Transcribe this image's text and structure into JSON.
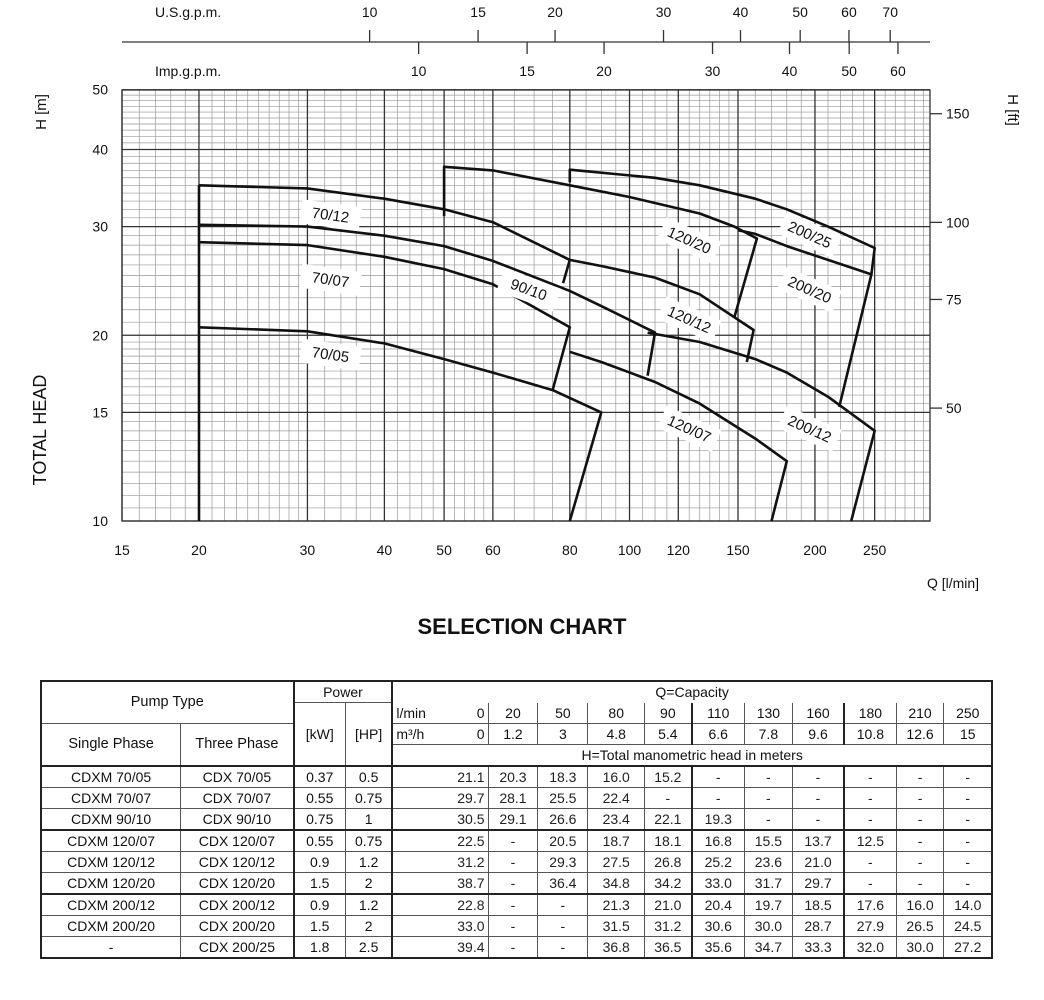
{
  "chart_data": {
    "type": "line",
    "title": "SELECTION CHART",
    "xlabel": "Q [l/min]",
    "ylabel": "TOTAL HEAD",
    "ylabel_unit_left": "H [m]",
    "ylabel_unit_right": "H [ft]",
    "x_scale": "log",
    "y_scale": "log",
    "xlim": [
      15,
      307
    ],
    "ylim": [
      10,
      50
    ],
    "grid": true,
    "x_ticks": [
      15,
      20,
      30,
      40,
      50,
      60,
      80,
      100,
      120,
      150,
      200,
      250
    ],
    "y_ticks": [
      10,
      15,
      20,
      30,
      40,
      50
    ],
    "y_ticks_right_ft": [
      50,
      75,
      100,
      150
    ],
    "top_axis_us": {
      "label": "U.S.g.p.m.",
      "ticks": [
        10,
        15,
        20,
        30,
        40,
        50,
        60,
        70
      ]
    },
    "top_axis_imp": {
      "label": "Imp.g.p.m.",
      "ticks": [
        10,
        15,
        20,
        30,
        40,
        50,
        60
      ]
    },
    "line_color": "#111111",
    "series": [
      {
        "name": "",
        "points": [
          [
            20,
            10
          ],
          [
            20,
            35
          ]
        ]
      },
      {
        "name": "70/12",
        "points": [
          [
            20,
            35
          ],
          [
            30,
            34.6
          ],
          [
            40,
            33.3
          ],
          [
            50,
            32
          ],
          [
            60,
            30.5
          ],
          [
            80,
            26.5
          ],
          [
            78,
            24.3
          ]
        ]
      },
      {
        "name": "90/10",
        "points": [
          [
            20,
            30.2
          ],
          [
            30,
            30
          ],
          [
            40,
            29
          ],
          [
            50,
            27.9
          ],
          [
            60,
            26.4
          ],
          [
            80,
            23.6
          ],
          [
            90,
            22.3
          ],
          [
            110,
            20.2
          ],
          [
            107,
            17.2
          ]
        ]
      },
      {
        "name": "70/07",
        "points": [
          [
            20,
            28.3
          ],
          [
            30,
            28
          ],
          [
            40,
            26.8
          ],
          [
            50,
            25.6
          ],
          [
            60,
            24.2
          ],
          [
            80,
            20.6
          ],
          [
            75,
            16.3
          ]
        ]
      },
      {
        "name": "70/05",
        "points": [
          [
            20,
            20.6
          ],
          [
            30,
            20.3
          ],
          [
            40,
            19.4
          ],
          [
            50,
            18.3
          ],
          [
            60,
            17.4
          ],
          [
            75,
            16.3
          ],
          [
            90,
            15.0
          ],
          [
            80,
            10
          ]
        ]
      },
      {
        "name": "120/20",
        "points": [
          [
            50,
            31.2
          ],
          [
            50,
            37.5
          ],
          [
            60,
            37
          ],
          [
            80,
            35
          ],
          [
            100,
            33.5
          ],
          [
            130,
            31.5
          ],
          [
            148,
            30
          ],
          [
            161,
            28.7
          ],
          [
            148,
            21.4
          ]
        ]
      },
      {
        "name": "120/12",
        "points": [
          [
            80,
            26.5
          ],
          [
            90,
            25.9
          ],
          [
            110,
            24.8
          ],
          [
            130,
            23.3
          ],
          [
            159,
            20.4
          ],
          [
            155,
            18.1
          ]
        ]
      },
      {
        "name": "120/07",
        "points": [
          [
            80,
            18.8
          ],
          [
            90,
            18.1
          ],
          [
            110,
            16.8
          ],
          [
            130,
            15.5
          ],
          [
            160,
            13.6
          ],
          [
            180,
            12.5
          ],
          [
            170,
            10
          ]
        ]
      },
      {
        "name": "200/25",
        "points": [
          [
            80,
            35.4
          ],
          [
            80,
            37.1
          ],
          [
            110,
            36
          ],
          [
            130,
            35
          ],
          [
            160,
            33.3
          ],
          [
            180,
            32
          ],
          [
            210,
            30
          ],
          [
            250,
            27.7
          ],
          [
            247,
            25.1
          ]
        ]
      },
      {
        "name": "200/20",
        "points": [
          [
            150,
            29.6
          ],
          [
            160,
            29.2
          ],
          [
            180,
            27.9
          ],
          [
            210,
            26.5
          ],
          [
            247,
            25.1
          ],
          [
            219,
            15.3
          ]
        ]
      },
      {
        "name": "200/12",
        "points": [
          [
            107,
            20.2
          ],
          [
            130,
            19.5
          ],
          [
            160,
            18.3
          ],
          [
            180,
            17.4
          ],
          [
            210,
            15.9
          ],
          [
            250,
            14
          ],
          [
            229,
            10
          ]
        ]
      }
    ]
  },
  "table": {
    "pump_type": "Pump Type",
    "single_phase": "Single Phase",
    "three_phase": "Three Phase",
    "power": "Power",
    "kw": "[kW]",
    "hp": "[HP]",
    "capacity": "Q=Capacity",
    "lmin_label": "l/min",
    "m3h_label": "m³/h",
    "head_label": "H=Total manometric head in meters",
    "lmin": [
      "0",
      "20",
      "50",
      "80",
      "90",
      "110",
      "130",
      "160",
      "180",
      "210",
      "250"
    ],
    "m3h": [
      "0",
      "1.2",
      "3",
      "4.8",
      "5.4",
      "6.6",
      "7.8",
      "9.6",
      "10.8",
      "12.6",
      "15"
    ],
    "rows": [
      {
        "single": "CDXM 70/05",
        "three": "CDX 70/05",
        "kw": "0.37",
        "hp": "0.5",
        "h": [
          "21.1",
          "20.3",
          "18.3",
          "16.0",
          "15.2",
          "-",
          "-",
          "-",
          "-",
          "-",
          "-"
        ]
      },
      {
        "single": "CDXM 70/07",
        "three": "CDX 70/07",
        "kw": "0.55",
        "hp": "0.75",
        "h": [
          "29.7",
          "28.1",
          "25.5",
          "22.4",
          "-",
          "-",
          "-",
          "-",
          "-",
          "-",
          "-"
        ]
      },
      {
        "single": "CDXM 90/10",
        "three": "CDX 90/10",
        "kw": "0.75",
        "hp": "1",
        "h": [
          "30.5",
          "29.1",
          "26.6",
          "23.4",
          "22.1",
          "19.3",
          "-",
          "-",
          "-",
          "-",
          "-"
        ]
      },
      {
        "single": "CDXM 120/07",
        "three": "CDX 120/07",
        "kw": "0.55",
        "hp": "0.75",
        "h": [
          "22.5",
          "-",
          "20.5",
          "18.7",
          "18.1",
          "16.8",
          "15.5",
          "13.7",
          "12.5",
          "-",
          "-"
        ]
      },
      {
        "single": "CDXM 120/12",
        "three": "CDX 120/12",
        "kw": "0.9",
        "hp": "1.2",
        "h": [
          "31.2",
          "-",
          "29.3",
          "27.5",
          "26.8",
          "25.2",
          "23.6",
          "21.0",
          "-",
          "-",
          "-"
        ]
      },
      {
        "single": "CDXM 120/20",
        "three": "CDX 120/20",
        "kw": "1.5",
        "hp": "2",
        "h": [
          "38.7",
          "-",
          "36.4",
          "34.8",
          "34.2",
          "33.0",
          "31.7",
          "29.7",
          "-",
          "-",
          "-"
        ]
      },
      {
        "single": "CDXM 200/12",
        "three": "CDX 200/12",
        "kw": "0.9",
        "hp": "1.2",
        "h": [
          "22.8",
          "-",
          "-",
          "21.3",
          "21.0",
          "20.4",
          "19.7",
          "18.5",
          "17.6",
          "16.0",
          "14.0"
        ]
      },
      {
        "single": "CDXM 200/20",
        "three": "CDX 200/20",
        "kw": "1.5",
        "hp": "2",
        "h": [
          "33.0",
          "-",
          "-",
          "31.5",
          "31.2",
          "30.6",
          "30.0",
          "28.7",
          "27.9",
          "26.5",
          "24.5"
        ]
      },
      {
        "single": "-",
        "three": "CDX 200/25",
        "kw": "1.8",
        "hp": "2.5",
        "h": [
          "39.4",
          "-",
          "-",
          "36.8",
          "36.5",
          "35.6",
          "34.7",
          "33.3",
          "32.0",
          "30.0",
          "27.2"
        ]
      }
    ]
  }
}
